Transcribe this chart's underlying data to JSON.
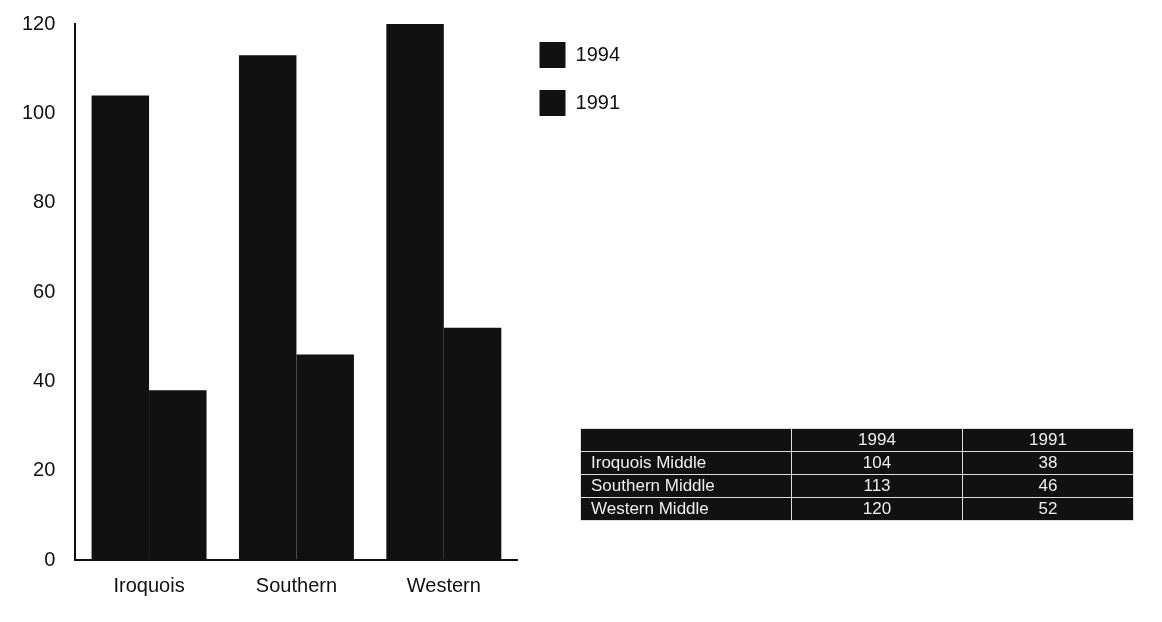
{
  "chart_data": {
    "type": "bar",
    "categories": [
      "Iroquois",
      "Southern",
      "Western"
    ],
    "series": [
      {
        "name": "1994",
        "color": "#111111",
        "values": [
          104,
          113,
          120
        ]
      },
      {
        "name": "1991",
        "color": "#111111",
        "values": [
          38,
          46,
          52
        ]
      }
    ],
    "ylim": [
      0,
      120
    ],
    "yticks": [
      0,
      20,
      40,
      60,
      80,
      100,
      120
    ],
    "grid": false,
    "legend": "top right",
    "annotations": [
      "1994",
      "1991",
      "Iroquois Middle",
      "104",
      "38",
      "Southern Middle",
      "113",
      "46",
      "Western Middle",
      "120",
      "52"
    ]
  }
}
